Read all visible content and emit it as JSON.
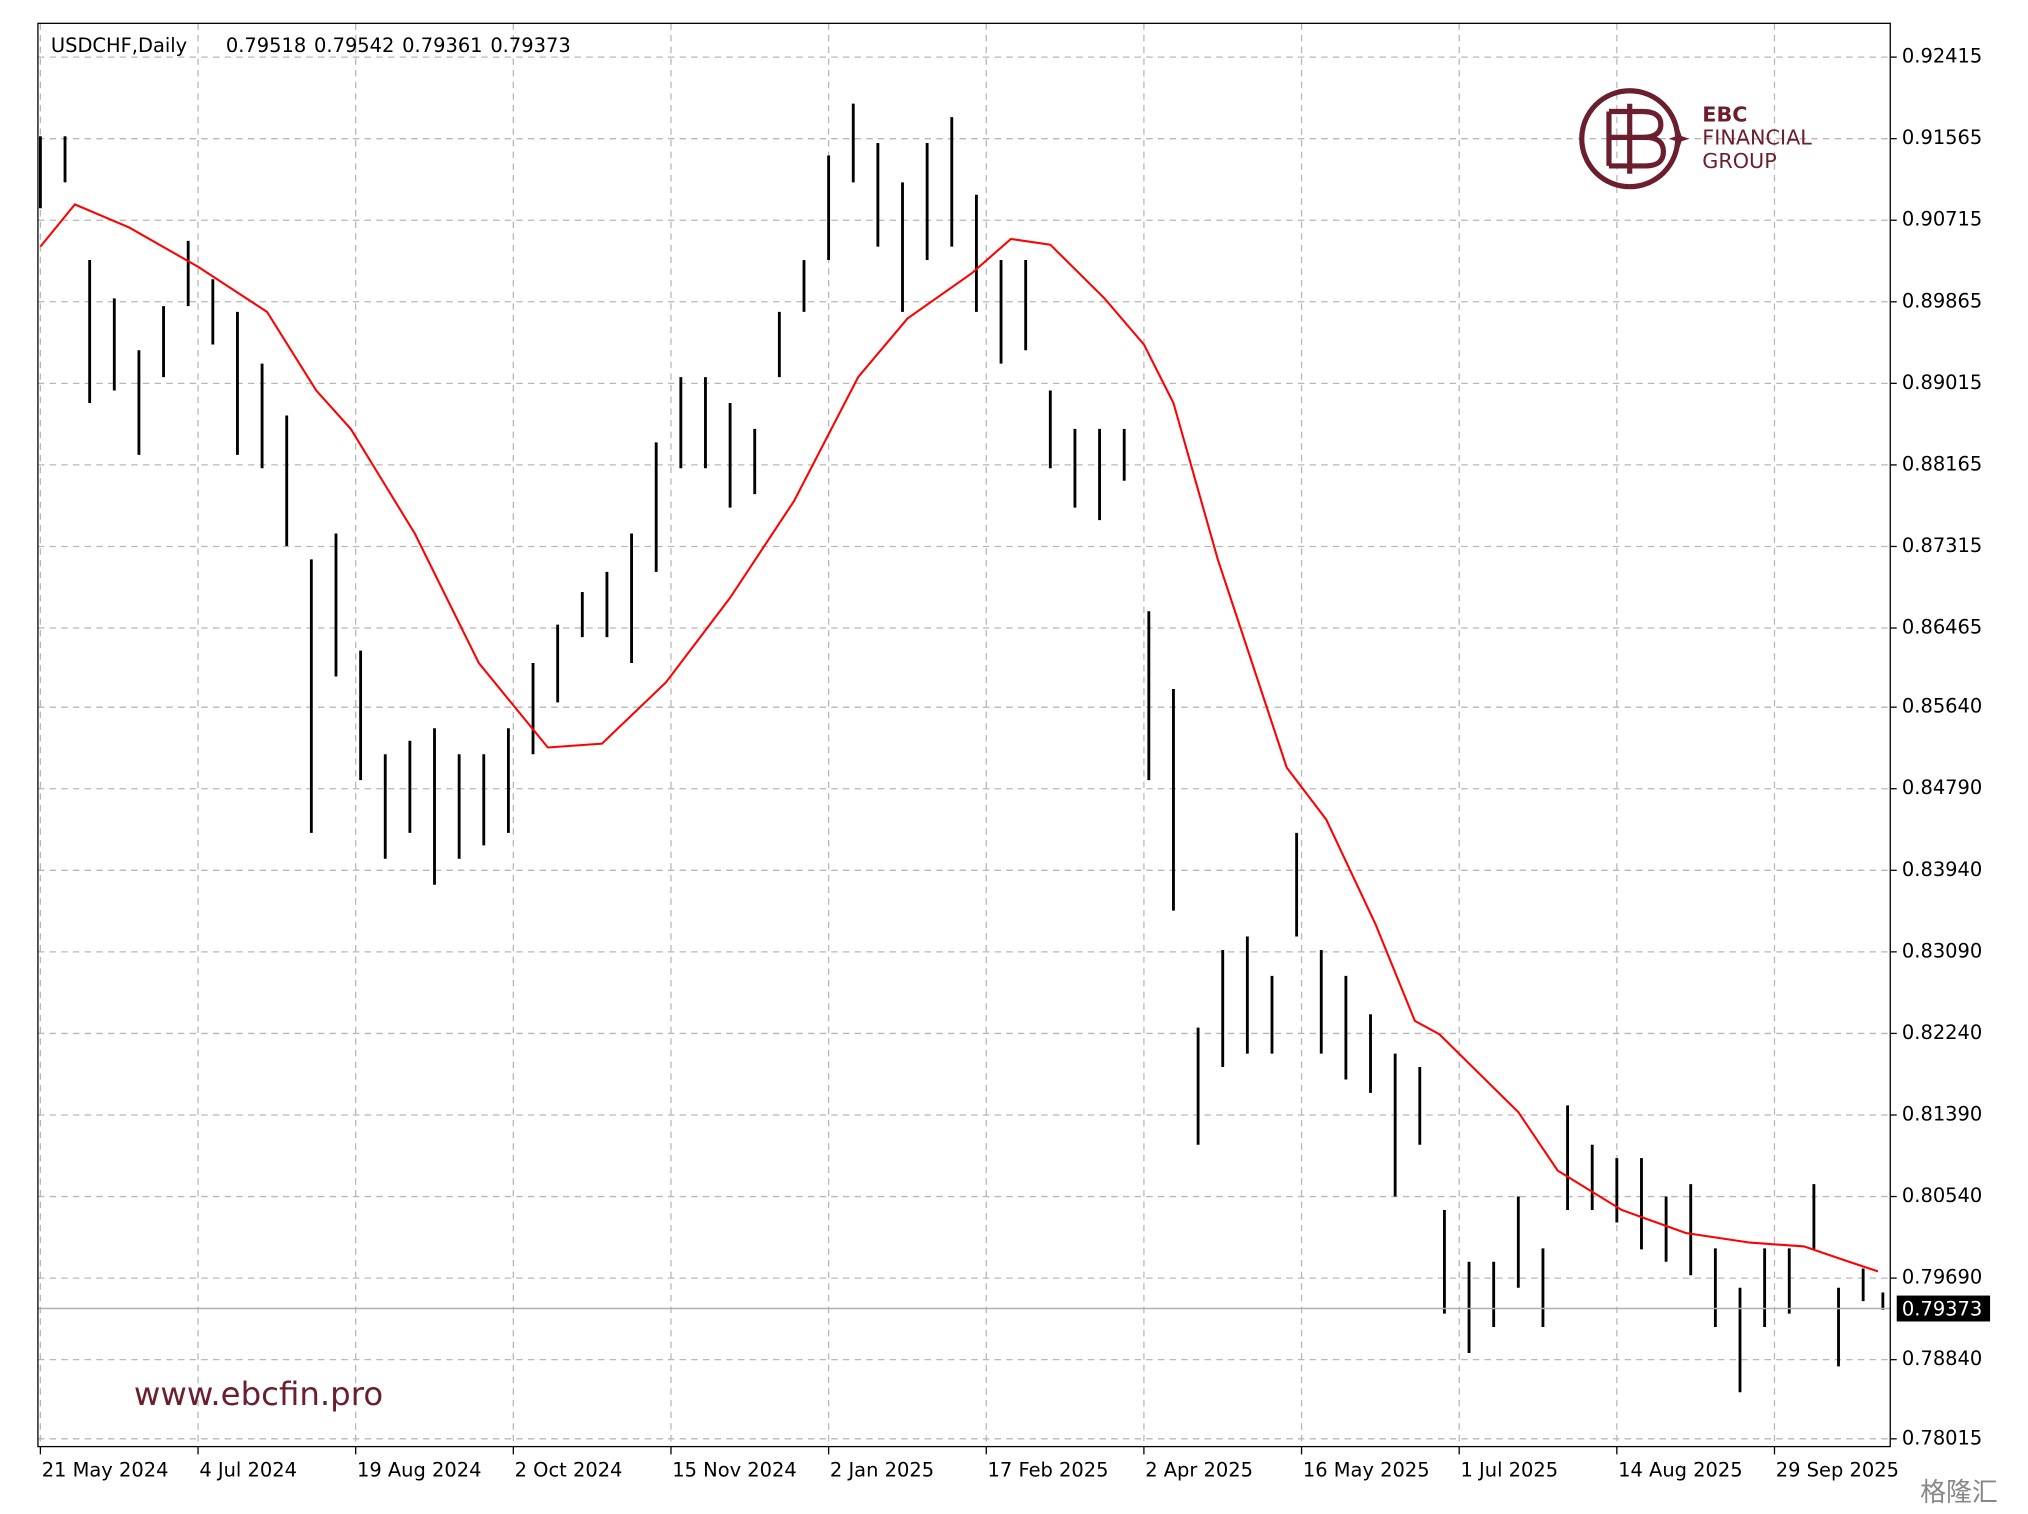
{
  "chart_data": {
    "type": "ohlc",
    "title": "USDCHF,Daily",
    "quote": [
      0.79518,
      0.79542,
      0.79361,
      0.79373
    ],
    "last_price": 0.79373,
    "brand": {
      "name": "EBC",
      "line1": "FINANCIAL",
      "line2": "GROUP",
      "url": "www.ebcfin.pro",
      "watermark": "格隆汇"
    },
    "xlim": [
      -0.5,
      375.5
    ],
    "ylim": [
      0.77934,
      0.92767
    ],
    "xticks": [
      {
        "value": 0,
        "label": "21 May 2024"
      },
      {
        "value": 32,
        "label": "4 Jul 2024"
      },
      {
        "value": 64,
        "label": "19 Aug 2024"
      },
      {
        "value": 96,
        "label": "2 Oct 2024"
      },
      {
        "value": 128,
        "label": "15 Nov 2024"
      },
      {
        "value": 160,
        "label": "2 Jan 2025"
      },
      {
        "value": 192,
        "label": "17 Feb 2025"
      },
      {
        "value": 224,
        "label": "2 Apr 2025"
      },
      {
        "value": 256,
        "label": "16 May 2025"
      },
      {
        "value": 288,
        "label": "1 Jul 2025"
      },
      {
        "value": 320,
        "label": "14 Aug 2025"
      },
      {
        "value": 352,
        "label": "29 Sep 2025"
      }
    ],
    "yticks": [
      0.78015,
      {
        "value": 0.7884,
        "label": "0.78840"
      },
      {
        "value": 0.7969,
        "label": "0.79690"
      },
      {
        "value": 0.8054,
        "label": "0.80540"
      },
      {
        "value": 0.8139,
        "label": "0.81390"
      },
      {
        "value": 0.8224,
        "label": "0.82240"
      },
      {
        "value": 0.8309,
        "label": "0.83090"
      },
      {
        "value": 0.8394,
        "label": "0.83940"
      },
      {
        "value": 0.8479,
        "label": "0.84790"
      },
      {
        "value": 0.8564,
        "label": "0.85640"
      },
      0.86465,
      0.87315,
      0.88165,
      0.89015,
      0.89865,
      0.90715,
      0.91565,
      0.92415
    ],
    "grid": true,
    "bars": {
      "color": "#000000",
      "x": [
        0,
        5,
        10,
        15,
        20,
        25,
        30,
        35,
        40,
        45,
        50,
        55,
        60,
        65,
        70,
        75,
        80,
        85,
        90,
        95,
        100,
        105,
        110,
        115,
        120,
        125,
        130,
        135,
        140,
        145,
        150,
        155,
        160,
        165,
        170,
        175,
        180,
        185,
        190,
        195,
        200,
        205,
        210,
        215,
        220,
        225,
        230,
        235,
        240,
        245,
        250,
        255,
        260,
        265,
        270,
        275,
        280,
        285,
        290,
        295,
        300,
        305,
        310,
        315,
        320,
        325,
        330,
        335,
        340,
        345,
        350,
        355,
        360,
        365,
        370,
        374
      ],
      "high": [
        0.9159,
        0.9159,
        0.903,
        0.899,
        0.8936,
        0.8982,
        0.905,
        0.901,
        0.8976,
        0.8922,
        0.8868,
        0.8718,
        0.8745,
        0.8623,
        0.8515,
        0.8529,
        0.8542,
        0.8515,
        0.8515,
        0.8542,
        0.861,
        0.865,
        0.8684,
        0.8705,
        0.8745,
        0.884,
        0.8908,
        0.8908,
        0.8881,
        0.8854,
        0.8976,
        0.903,
        0.9139,
        0.9193,
        0.9152,
        0.9111,
        0.9152,
        0.9179,
        0.9098,
        0.903,
        0.903,
        0.8894,
        0.8854,
        0.8854,
        0.8854,
        0.8664,
        0.8583,
        0.823,
        0.8311,
        0.8325,
        0.8284,
        0.8433,
        0.8311,
        0.8284,
        0.8244,
        0.8203,
        0.8189,
        0.804,
        0.7986,
        0.7986,
        0.8054,
        0.8,
        0.8149,
        0.8108,
        0.8094,
        0.8094,
        0.8054,
        0.8067,
        0.8,
        0.7959,
        0.8,
        0.8,
        0.8067,
        0.7959,
        0.7979,
        0.7954
      ],
      "low": [
        0.9084,
        0.9111,
        0.8881,
        0.8894,
        0.8827,
        0.8908,
        0.8982,
        0.8942,
        0.8827,
        0.8813,
        0.8732,
        0.8433,
        0.8596,
        0.8488,
        0.8406,
        0.8433,
        0.8379,
        0.8406,
        0.842,
        0.8433,
        0.8515,
        0.8569,
        0.8637,
        0.8637,
        0.861,
        0.8705,
        0.8813,
        0.8813,
        0.8772,
        0.8786,
        0.8908,
        0.8976,
        0.903,
        0.9111,
        0.9044,
        0.8976,
        0.903,
        0.9044,
        0.8976,
        0.8922,
        0.8936,
        0.8813,
        0.8772,
        0.8759,
        0.88,
        0.8488,
        0.8352,
        0.8108,
        0.8189,
        0.8203,
        0.8203,
        0.8325,
        0.8203,
        0.8176,
        0.8162,
        0.8054,
        0.8108,
        0.7932,
        0.7891,
        0.7918,
        0.7959,
        0.7918,
        0.804,
        0.804,
        0.8027,
        0.7999,
        0.7986,
        0.7972,
        0.7918,
        0.785,
        0.7918,
        0.7932,
        0.7999,
        0.7877,
        0.7945,
        0.7936
      ]
    },
    "ma": {
      "color": "#ff0000",
      "x": [
        0,
        7,
        18,
        32,
        46,
        56,
        63,
        76,
        89,
        103,
        114,
        127,
        140,
        153,
        166,
        176,
        189,
        197,
        205,
        216,
        224,
        230,
        239,
        253,
        261,
        271,
        279,
        284,
        300,
        308,
        321,
        334,
        347,
        358,
        366,
        373
      ],
      "values": [
        0.9044,
        0.9088,
        0.9064,
        0.9023,
        0.8976,
        0.8894,
        0.8854,
        0.8745,
        0.861,
        0.8522,
        0.8526,
        0.859,
        0.8678,
        0.8779,
        0.8908,
        0.8969,
        0.9016,
        0.9052,
        0.9046,
        0.899,
        0.8942,
        0.8881,
        0.8718,
        0.8501,
        0.8447,
        0.8338,
        0.8237,
        0.8223,
        0.8142,
        0.8081,
        0.804,
        0.8016,
        0.8006,
        0.8002,
        0.7988,
        0.7976
      ]
    }
  }
}
